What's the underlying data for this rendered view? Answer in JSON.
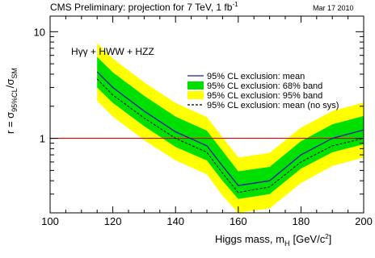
{
  "header": {
    "title": "CMS Preliminary: projection for 7 TeV, 1 fb",
    "title_sup": "-1",
    "date": "Mar 17 2010"
  },
  "chart_data": {
    "type": "area",
    "annotation": "Hγγ + HWW + HZZ",
    "xlabel_main": "Higgs mass, m",
    "xlabel_sub": "H",
    "xlabel_unit": "[GeV/c",
    "xlabel_unit_sup": "2",
    "xlabel_unit_close": "]",
    "ylabel_main": "r = σ",
    "ylabel_sub1": "95%CL",
    "ylabel_mid": "/σ",
    "ylabel_sub2": "SM",
    "xlim": [
      100,
      200
    ],
    "ylim": [
      0.2,
      14
    ],
    "yscale": "log",
    "x_ticks": [
      100,
      120,
      140,
      160,
      180,
      200
    ],
    "y_ticks": [
      1,
      10
    ],
    "reference_line": 1,
    "legend_position": "right",
    "x": [
      115,
      120,
      130,
      140,
      150,
      155,
      160,
      170,
      180,
      190,
      200
    ],
    "series": [
      {
        "name": "95% CL exclusion: mean",
        "style": "line",
        "color": "#1a1aa6",
        "values": [
          4.2,
          3.0,
          1.8,
          1.15,
          0.85,
          0.55,
          0.36,
          0.4,
          0.7,
          1.0,
          1.2
        ]
      },
      {
        "name": "95% CL exclusion: 68% band",
        "style": "band",
        "color": "#00e000",
        "lower": [
          3.0,
          2.15,
          1.3,
          0.83,
          0.62,
          0.4,
          0.27,
          0.3,
          0.52,
          0.74,
          0.88
        ],
        "upper": [
          5.8,
          4.15,
          2.5,
          1.6,
          1.18,
          0.76,
          0.49,
          0.54,
          0.94,
          1.35,
          1.62
        ]
      },
      {
        "name": "95% CL exclusion: 95% band",
        "style": "band",
        "color": "#ffff00",
        "lower": [
          2.25,
          1.6,
          0.96,
          0.62,
          0.46,
          0.29,
          0.2,
          0.22,
          0.38,
          0.55,
          0.66
        ],
        "upper": [
          7.8,
          5.6,
          3.35,
          2.15,
          1.58,
          1.02,
          0.66,
          0.73,
          1.26,
          1.8,
          2.17
        ]
      },
      {
        "name": "95% CL exclusion: mean (no sys)",
        "style": "dashed",
        "color": "#000000",
        "values": [
          3.6,
          2.55,
          1.55,
          1.0,
          0.74,
          0.47,
          0.31,
          0.35,
          0.6,
          0.85,
          1.0
        ]
      }
    ]
  }
}
